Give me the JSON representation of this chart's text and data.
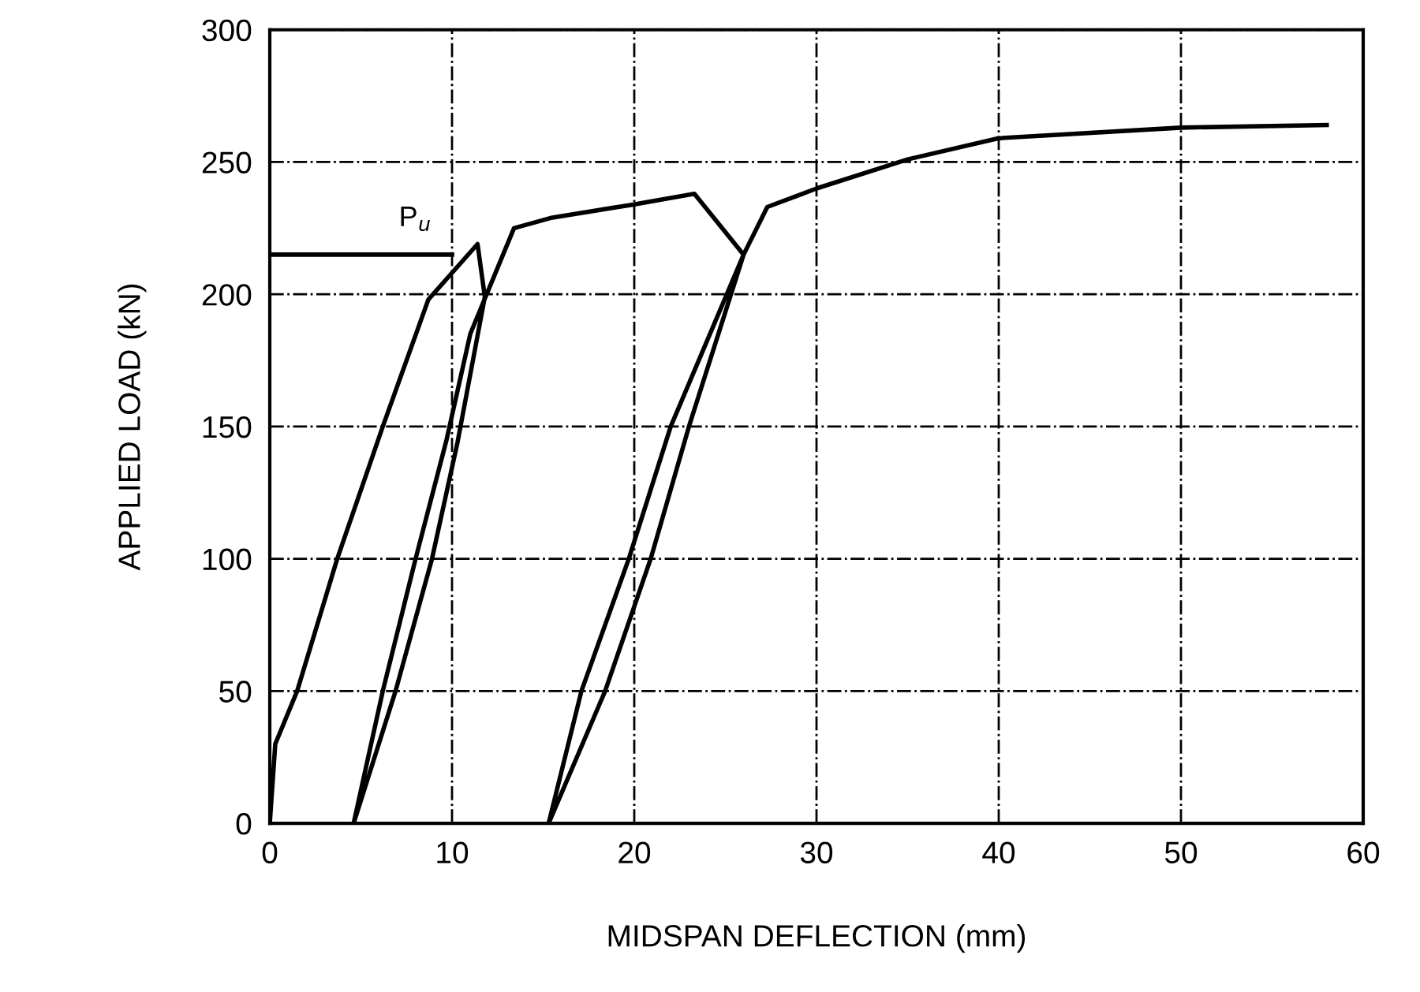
{
  "chart_data": {
    "type": "line",
    "xlabel": "MIDSPAN DEFLECTION (mm)",
    "ylabel": "APPLIED LOAD (kN)",
    "xlim": [
      0,
      60
    ],
    "xticks": [
      0,
      10,
      20,
      30,
      40,
      50,
      60
    ],
    "ylim": [
      0,
      300
    ],
    "yticks": [
      0,
      50,
      100,
      150,
      200,
      250,
      300
    ],
    "grid": true,
    "series": [
      {
        "color": "#000000",
        "x": [
          0,
          0.3,
          1.5,
          3.7,
          6.2,
          8.7,
          11.4,
          11.8,
          10.3,
          8.9,
          6.9,
          4.6,
          6.2,
          8.0,
          9.7,
          11.0,
          13.4,
          15.5,
          20,
          23.3,
          26.0,
          23.0,
          20.9,
          18.4,
          15.3,
          17.1,
          19.7,
          22.0,
          26.0,
          27.3,
          30,
          35,
          40,
          50,
          58
        ],
        "values": [
          0,
          30,
          50,
          100,
          150,
          198,
          219,
          199,
          144,
          100,
          50,
          0,
          50,
          100,
          145,
          185,
          225,
          229,
          234,
          238,
          215,
          150,
          100,
          50,
          0,
          50,
          100,
          150,
          215,
          233,
          240,
          251,
          259,
          263,
          264
        ]
      },
      {
        "color": "#000000",
        "x": [
          0,
          10
        ],
        "values": [
          215,
          215
        ]
      }
    ],
    "annotations": [
      "P$_{u}$"
    ]
  }
}
